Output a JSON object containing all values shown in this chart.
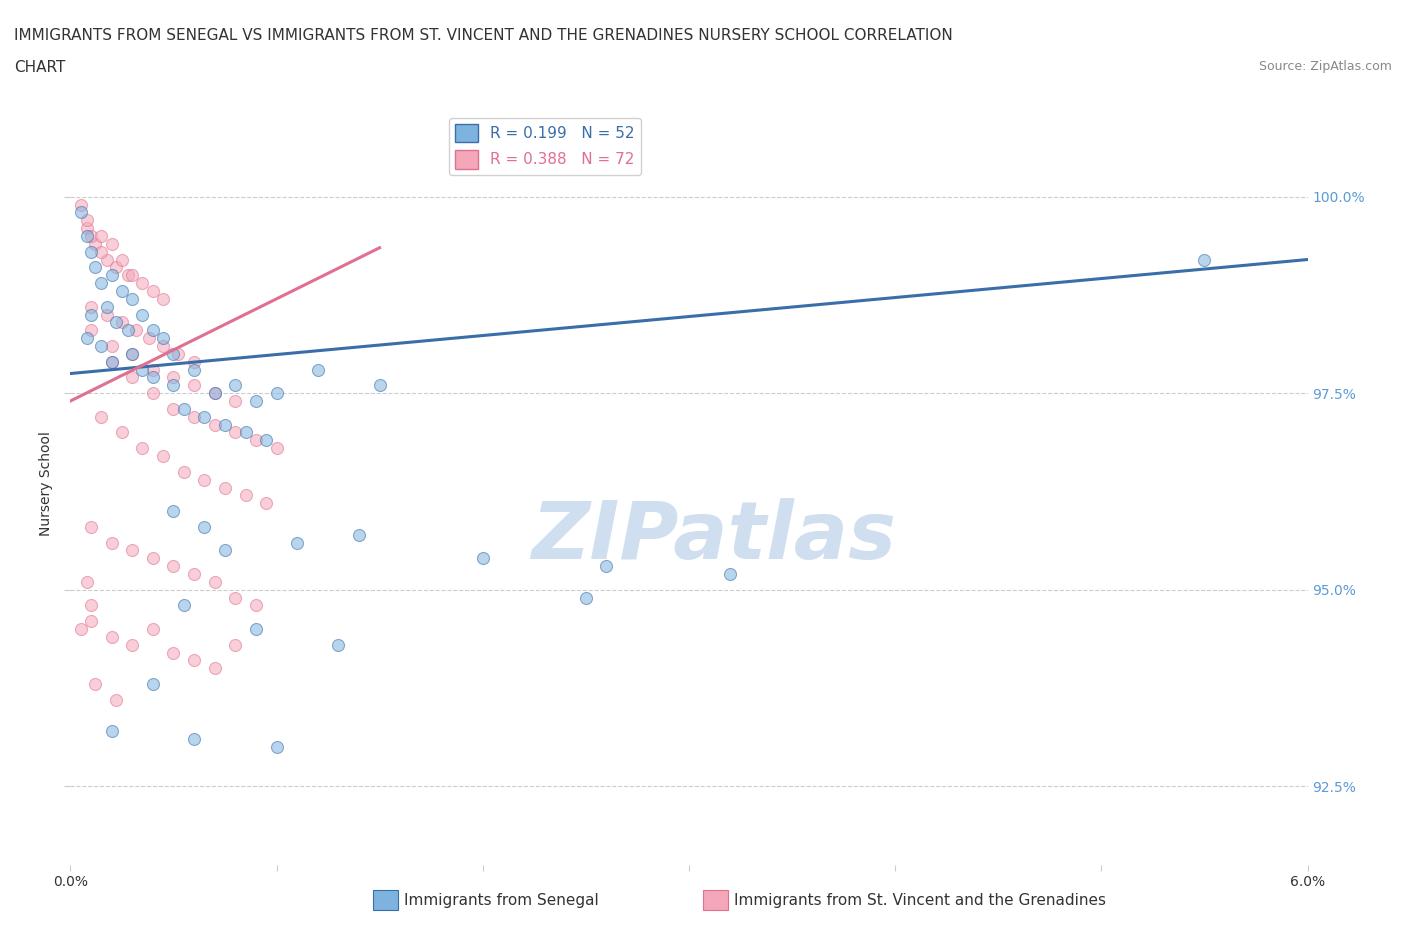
{
  "title_line1": "IMMIGRANTS FROM SENEGAL VS IMMIGRANTS FROM ST. VINCENT AND THE GRENADINES NURSERY SCHOOL CORRELATION",
  "title_line2": "CHART",
  "source_text": "Source: ZipAtlas.com",
  "ylabel": "Nursery School",
  "xlim": [
    0.0,
    6.0
  ],
  "ylim": [
    91.5,
    101.2
  ],
  "yticks": [
    92.5,
    95.0,
    97.5,
    100.0
  ],
  "xtick_labels": [
    "0.0%",
    "",
    "",
    "",
    "",
    "",
    "6.0%"
  ],
  "ytick_labels": [
    "92.5%",
    "95.0%",
    "97.5%",
    "100.0%"
  ],
  "legend1_label": "Immigrants from Senegal",
  "legend2_label": "Immigrants from St. Vincent and the Grenadines",
  "R_blue": 0.199,
  "N_blue": 52,
  "R_pink": 0.388,
  "N_pink": 72,
  "blue_color": "#7EB3E0",
  "pink_color": "#F4A7B9",
  "blue_line_color": "#3A6EA8",
  "pink_line_color": "#E07090",
  "blue_scatter": [
    [
      0.05,
      99.8
    ],
    [
      0.08,
      99.5
    ],
    [
      0.1,
      99.3
    ],
    [
      0.12,
      99.1
    ],
    [
      0.15,
      98.9
    ],
    [
      0.2,
      99.0
    ],
    [
      0.25,
      98.8
    ],
    [
      0.3,
      98.7
    ],
    [
      0.1,
      98.5
    ],
    [
      0.18,
      98.6
    ],
    [
      0.22,
      98.4
    ],
    [
      0.28,
      98.3
    ],
    [
      0.35,
      98.5
    ],
    [
      0.4,
      98.3
    ],
    [
      0.45,
      98.2
    ],
    [
      0.5,
      98.0
    ],
    [
      0.08,
      98.2
    ],
    [
      0.15,
      98.1
    ],
    [
      0.2,
      97.9
    ],
    [
      0.3,
      98.0
    ],
    [
      0.35,
      97.8
    ],
    [
      0.4,
      97.7
    ],
    [
      0.5,
      97.6
    ],
    [
      0.6,
      97.8
    ],
    [
      0.7,
      97.5
    ],
    [
      0.8,
      97.6
    ],
    [
      0.9,
      97.4
    ],
    [
      1.0,
      97.5
    ],
    [
      1.2,
      97.8
    ],
    [
      1.5,
      97.6
    ],
    [
      0.55,
      97.3
    ],
    [
      0.65,
      97.2
    ],
    [
      0.75,
      97.1
    ],
    [
      0.85,
      97.0
    ],
    [
      0.95,
      96.9
    ],
    [
      0.5,
      96.0
    ],
    [
      0.65,
      95.8
    ],
    [
      0.75,
      95.5
    ],
    [
      1.1,
      95.6
    ],
    [
      1.4,
      95.7
    ],
    [
      2.0,
      95.4
    ],
    [
      2.6,
      95.3
    ],
    [
      3.2,
      95.2
    ],
    [
      0.55,
      94.8
    ],
    [
      0.9,
      94.5
    ],
    [
      1.3,
      94.3
    ],
    [
      2.5,
      94.9
    ],
    [
      0.4,
      93.8
    ],
    [
      0.2,
      93.2
    ],
    [
      0.6,
      93.1
    ],
    [
      1.0,
      93.0
    ],
    [
      5.5,
      99.2
    ]
  ],
  "pink_scatter": [
    [
      0.05,
      99.9
    ],
    [
      0.08,
      99.6
    ],
    [
      0.12,
      99.4
    ],
    [
      0.18,
      99.2
    ],
    [
      0.1,
      99.5
    ],
    [
      0.15,
      99.3
    ],
    [
      0.22,
      99.1
    ],
    [
      0.28,
      99.0
    ],
    [
      0.08,
      99.7
    ],
    [
      0.15,
      99.5
    ],
    [
      0.2,
      99.4
    ],
    [
      0.25,
      99.2
    ],
    [
      0.3,
      99.0
    ],
    [
      0.35,
      98.9
    ],
    [
      0.4,
      98.8
    ],
    [
      0.45,
      98.7
    ],
    [
      0.1,
      98.6
    ],
    [
      0.18,
      98.5
    ],
    [
      0.25,
      98.4
    ],
    [
      0.32,
      98.3
    ],
    [
      0.38,
      98.2
    ],
    [
      0.45,
      98.1
    ],
    [
      0.52,
      98.0
    ],
    [
      0.6,
      97.9
    ],
    [
      0.1,
      98.3
    ],
    [
      0.2,
      98.1
    ],
    [
      0.3,
      98.0
    ],
    [
      0.4,
      97.8
    ],
    [
      0.5,
      97.7
    ],
    [
      0.6,
      97.6
    ],
    [
      0.7,
      97.5
    ],
    [
      0.8,
      97.4
    ],
    [
      0.2,
      97.9
    ],
    [
      0.3,
      97.7
    ],
    [
      0.4,
      97.5
    ],
    [
      0.5,
      97.3
    ],
    [
      0.6,
      97.2
    ],
    [
      0.7,
      97.1
    ],
    [
      0.8,
      97.0
    ],
    [
      0.9,
      96.9
    ],
    [
      1.0,
      96.8
    ],
    [
      0.15,
      97.2
    ],
    [
      0.25,
      97.0
    ],
    [
      0.35,
      96.8
    ],
    [
      0.45,
      96.7
    ],
    [
      0.55,
      96.5
    ],
    [
      0.65,
      96.4
    ],
    [
      0.75,
      96.3
    ],
    [
      0.85,
      96.2
    ],
    [
      0.95,
      96.1
    ],
    [
      0.1,
      95.8
    ],
    [
      0.2,
      95.6
    ],
    [
      0.3,
      95.5
    ],
    [
      0.4,
      95.4
    ],
    [
      0.5,
      95.3
    ],
    [
      0.6,
      95.2
    ],
    [
      0.7,
      95.1
    ],
    [
      0.8,
      94.9
    ],
    [
      0.9,
      94.8
    ],
    [
      0.1,
      94.6
    ],
    [
      0.2,
      94.4
    ],
    [
      0.3,
      94.3
    ],
    [
      0.4,
      94.5
    ],
    [
      0.5,
      94.2
    ],
    [
      0.6,
      94.1
    ],
    [
      0.7,
      94.0
    ],
    [
      0.8,
      94.3
    ],
    [
      0.12,
      93.8
    ],
    [
      0.22,
      93.6
    ],
    [
      0.1,
      94.8
    ],
    [
      0.05,
      94.5
    ],
    [
      0.08,
      95.1
    ]
  ],
  "background_color": "#ffffff",
  "watermark_text": "ZIPatlas",
  "watermark_color": "#d0dff0",
  "title_fontsize": 11,
  "axis_label_fontsize": 10,
  "tick_fontsize": 10,
  "legend_fontsize": 11,
  "scatter_alpha": 0.55,
  "scatter_size": 75,
  "blue_trend_x0": 0.0,
  "blue_trend_y0": 97.75,
  "blue_trend_x1": 6.0,
  "blue_trend_y1": 99.2,
  "pink_trend_x0": 0.0,
  "pink_trend_y0": 97.4,
  "pink_trend_x1": 1.5,
  "pink_trend_y1": 99.35
}
